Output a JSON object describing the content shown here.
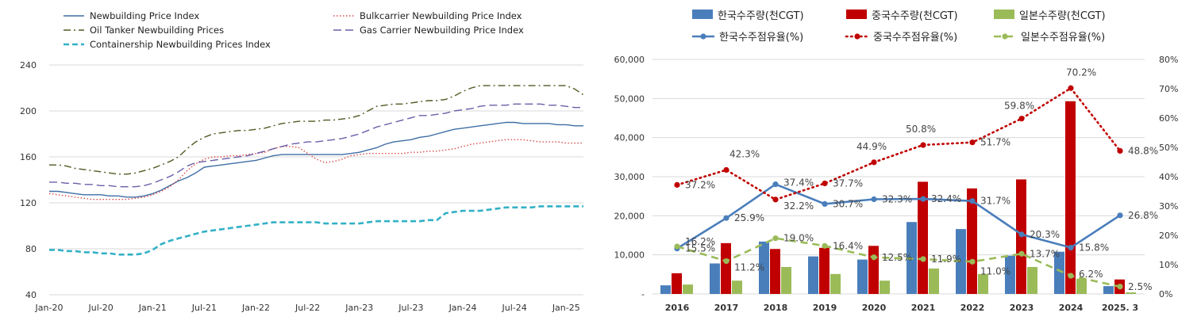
{
  "chart_data": [
    {
      "type": "line",
      "title": "",
      "xlabel": "",
      "ylabel": "",
      "ylim": [
        40,
        240
      ],
      "yticks": [
        40,
        80,
        120,
        160,
        200,
        240
      ],
      "x_tick_labels": [
        "Jan-20",
        "Jul-20",
        "Jan-21",
        "Jul-21",
        "Jan-22",
        "Jul-22",
        "Jan-23",
        "Jul-23",
        "Jan-24",
        "Jul-24",
        "Jan-25"
      ],
      "x_start": "2020-01",
      "x_end": "2025-03",
      "grid": "horizontal",
      "legend_position": "top",
      "series": [
        {
          "name": "Newbuilding Price Index",
          "color": "#3f6ea5",
          "dash": "solid",
          "values": [
            130,
            130,
            129,
            128,
            127,
            127,
            127,
            126,
            126,
            125,
            125,
            126,
            128,
            131,
            135,
            139,
            142,
            146,
            151,
            152,
            153,
            154,
            155,
            156,
            157,
            159,
            161,
            162,
            162,
            162,
            162,
            162,
            162,
            162,
            162,
            163,
            164,
            166,
            168,
            171,
            173,
            174,
            175,
            177,
            178,
            180,
            182,
            184,
            185,
            186,
            187,
            188,
            189,
            190,
            190,
            189,
            189,
            189,
            189,
            188,
            188,
            187,
            187
          ]
        },
        {
          "name": "Bulkcarrier Newbuilding Price Index",
          "color": "#d94a4a",
          "dash": "dotted",
          "values": [
            128,
            127,
            126,
            125,
            124,
            123,
            123,
            123,
            123,
            123,
            124,
            125,
            127,
            130,
            134,
            140,
            148,
            154,
            158,
            160,
            160,
            161,
            161,
            162,
            163,
            164,
            167,
            169,
            169,
            168,
            163,
            158,
            155,
            156,
            158,
            161,
            162,
            163,
            163,
            163,
            163,
            163,
            164,
            164,
            165,
            165,
            166,
            167,
            169,
            171,
            172,
            173,
            174,
            175,
            175,
            175,
            174,
            173,
            173,
            173,
            172,
            172,
            172
          ]
        },
        {
          "name": "Oil Tanker Newbuilding Prices",
          "color": "#4f5a22",
          "dash": "dashdot",
          "values": [
            153,
            153,
            152,
            150,
            149,
            148,
            147,
            146,
            145,
            145,
            146,
            148,
            150,
            153,
            156,
            160,
            167,
            173,
            177,
            180,
            181,
            182,
            183,
            183,
            184,
            185,
            187,
            189,
            190,
            191,
            191,
            191,
            192,
            192,
            193,
            194,
            196,
            200,
            204,
            205,
            206,
            206,
            207,
            208,
            209,
            209,
            210,
            213,
            217,
            220,
            222,
            222,
            222,
            222,
            222,
            222,
            222,
            222,
            222,
            222,
            222,
            219,
            214
          ]
        },
        {
          "name": "Gas Carrier Newbuilding Price Index",
          "color": "#6a5fa8",
          "dash": "longdash",
          "values": [
            138,
            138,
            137,
            137,
            136,
            136,
            135,
            135,
            134,
            134,
            134,
            135,
            137,
            140,
            143,
            147,
            152,
            155,
            156,
            157,
            158,
            159,
            160,
            161,
            163,
            165,
            167,
            169,
            171,
            172,
            173,
            173,
            174,
            175,
            176,
            178,
            180,
            183,
            186,
            188,
            190,
            192,
            194,
            196,
            196,
            197,
            198,
            200,
            201,
            202,
            204,
            205,
            205,
            205,
            206,
            206,
            206,
            206,
            205,
            205,
            204,
            203,
            203
          ]
        },
        {
          "name": "Containership Newbuilding Prices Index",
          "color": "#33b1c6",
          "dash": "dashed",
          "values": [
            79,
            79,
            78,
            78,
            77,
            77,
            76,
            76,
            75,
            75,
            75,
            76,
            79,
            84,
            87,
            89,
            91,
            93,
            95,
            96,
            97,
            98,
            99,
            100,
            101,
            102,
            103,
            103,
            103,
            103,
            103,
            103,
            102,
            102,
            102,
            102,
            102,
            103,
            104,
            104,
            104,
            104,
            104,
            104,
            105,
            105,
            111,
            112,
            113,
            113,
            113,
            114,
            115,
            116,
            116,
            116,
            116,
            117,
            117,
            117,
            117,
            117,
            117
          ]
        }
      ]
    },
    {
      "type": "bar",
      "title": "",
      "categories": [
        "2016",
        "2017",
        "2018",
        "2019",
        "2020",
        "2021",
        "2022",
        "2023",
        "2024",
        "2025. 3"
      ],
      "ylim": [
        0,
        60000
      ],
      "y_tick_labels": [
        "-",
        "10,000",
        "20,000",
        "30,000",
        "40,000",
        "50,000",
        "60,000"
      ],
      "y2lim": [
        0,
        80
      ],
      "y2_tick_labels": [
        "0%",
        "10%",
        "20%",
        "30%",
        "40%",
        "50%",
        "60%",
        "70%",
        "80%"
      ],
      "grid": "horizontal",
      "legend_position": "top",
      "series": [
        {
          "name": "한국수주량(천CGT)",
          "kind": "bar",
          "axis": "left",
          "color": "#4a7ebb",
          "values": [
            2200,
            7800,
            13400,
            9600,
            8800,
            18400,
            16600,
            9800,
            10800,
            2000
          ]
        },
        {
          "name": "중국수주량(천CGT)",
          "kind": "bar",
          "axis": "left",
          "color": "#c00000",
          "values": [
            5300,
            13000,
            11500,
            11800,
            12300,
            28700,
            27000,
            29300,
            49300,
            3700
          ]
        },
        {
          "name": "일본수주량(천CGT)",
          "kind": "bar",
          "axis": "left",
          "color": "#9bbb59",
          "values": [
            2400,
            3400,
            6900,
            5100,
            3400,
            6500,
            5100,
            6900,
            3900,
            400
          ]
        },
        {
          "name": "한국수주점유율(%)",
          "kind": "line",
          "axis": "right",
          "color": "#4a7ebb",
          "values": [
            15.5,
            25.9,
            37.4,
            30.7,
            32.3,
            32.4,
            31.7,
            20.3,
            15.8,
            26.8
          ],
          "labels": [
            "15.5%",
            "25.9%",
            "37.4%",
            "30.7%",
            "32.3%",
            "32.4%",
            "31.7%",
            "20.3%",
            "15.8%",
            "26.8%"
          ]
        },
        {
          "name": "중국수주점유율(%)",
          "kind": "line",
          "axis": "right",
          "color": "#c00000",
          "values": [
            37.2,
            42.3,
            32.2,
            37.7,
            44.9,
            50.8,
            51.7,
            59.8,
            70.2,
            48.8
          ],
          "labels": [
            "37.2%",
            "42.3%",
            "32.2%",
            "37.7%",
            "44.9%",
            "50.8%",
            "51.7%",
            "59.8%",
            "70.2%",
            "48.8%"
          ]
        },
        {
          "name": "일본수주점유율(%)",
          "kind": "line",
          "axis": "right",
          "color": "#9bbb59",
          "values": [
            16.2,
            11.2,
            19.0,
            16.4,
            12.5,
            11.9,
            11.0,
            13.7,
            6.2,
            2.5
          ],
          "labels": [
            "16.2%",
            "11.2%",
            "19.0%",
            "16.4%",
            "12.5%",
            "11.9%",
            "11.0%",
            "13.7%",
            "6.2%",
            "2.5%"
          ]
        }
      ]
    }
  ]
}
